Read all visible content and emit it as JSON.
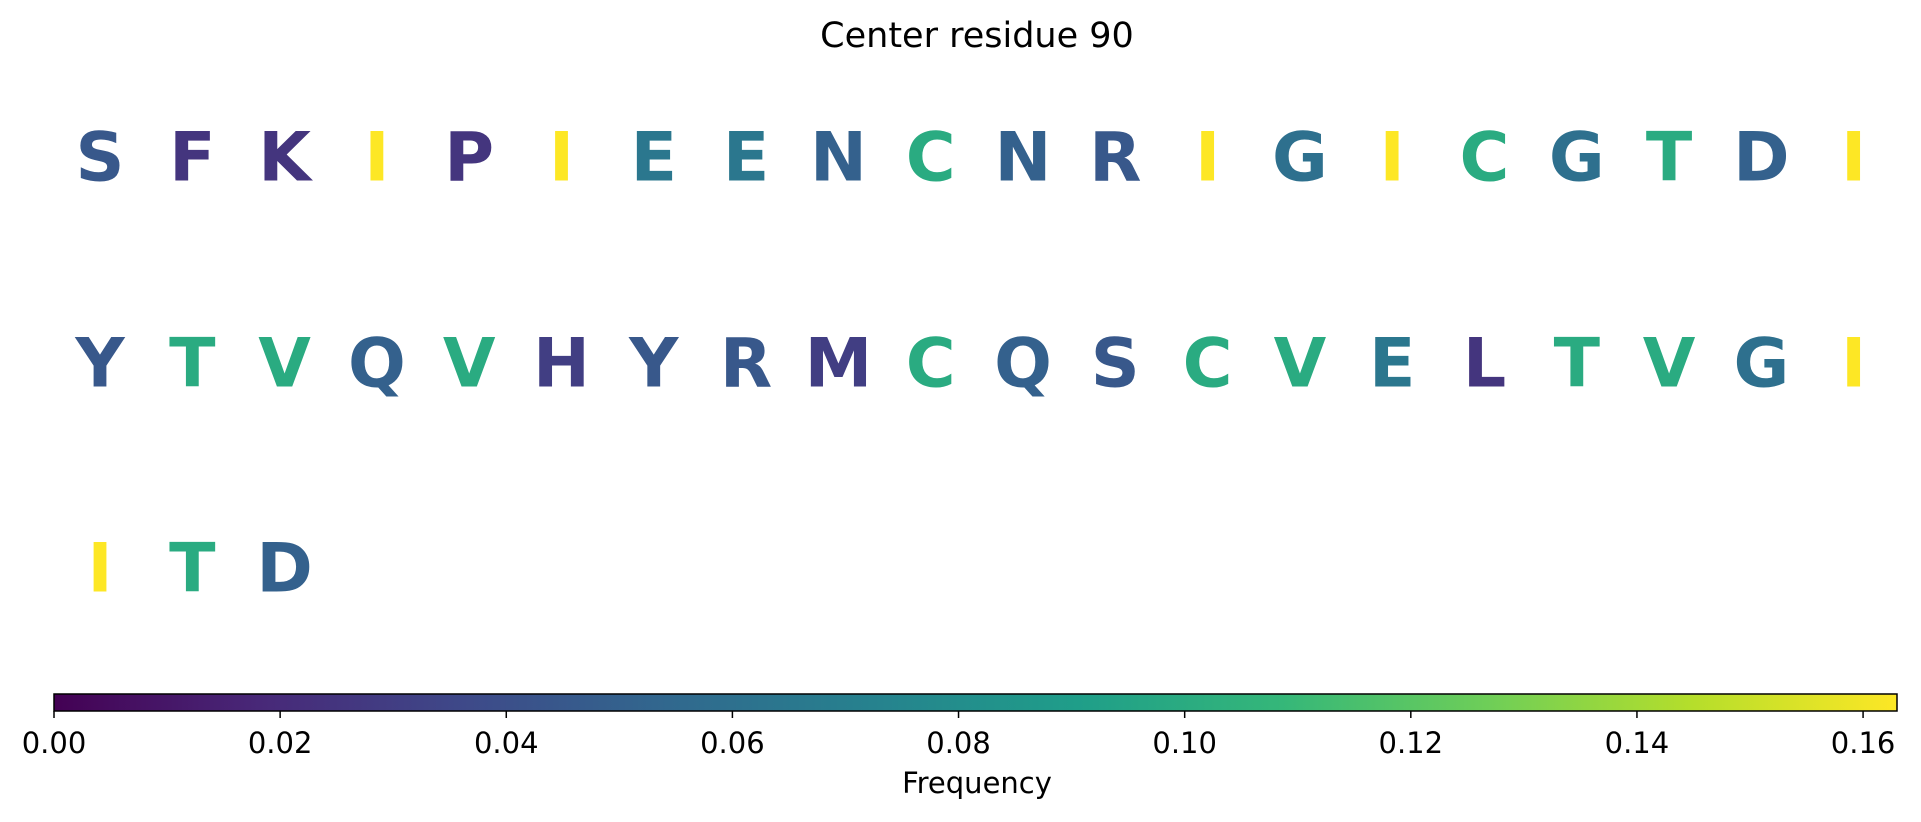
{
  "chart_data": {
    "type": "letters",
    "title": "Center residue 90",
    "categories": [
      "S",
      "F",
      "K",
      "I",
      "P",
      "I",
      "E",
      "E",
      "N",
      "C",
      "N",
      "R",
      "I",
      "G",
      "I",
      "C",
      "G",
      "T",
      "D",
      "I",
      "Y",
      "T",
      "V",
      "Q",
      "V",
      "H",
      "Y",
      "R",
      "M",
      "C",
      "Q",
      "S",
      "C",
      "V",
      "E",
      "L",
      "T",
      "V",
      "G",
      "I",
      "I",
      "T",
      "D"
    ],
    "values": [
      0.045,
      0.025,
      0.025,
      0.163,
      0.025,
      0.163,
      0.065,
      0.065,
      0.05,
      0.1,
      0.05,
      0.045,
      0.163,
      0.06,
      0.163,
      0.1,
      0.06,
      0.1,
      0.05,
      0.163,
      0.045,
      0.1,
      0.1,
      0.05,
      0.1,
      0.03,
      0.045,
      0.045,
      0.03,
      0.1,
      0.05,
      0.045,
      0.1,
      0.1,
      0.065,
      0.025,
      0.1,
      0.1,
      0.06,
      0.163,
      0.163,
      0.1,
      0.05
    ],
    "colormap": "viridis",
    "colorbar_label": "Frequency",
    "clim": [
      0,
      0.163
    ],
    "cticks": [
      {
        "value": 0,
        "label": "0.00"
      },
      {
        "value": 0.02,
        "label": "0.02"
      },
      {
        "value": 0.04,
        "label": "0.04"
      },
      {
        "value": 0.06,
        "label": "0.06"
      },
      {
        "value": 0.08,
        "label": "0.08"
      },
      {
        "value": 0.1,
        "label": "0.10"
      },
      {
        "value": 0.12,
        "label": "0.12"
      },
      {
        "value": 0.14,
        "label": "0.14"
      },
      {
        "value": 0.16,
        "label": "0.16"
      }
    ]
  }
}
